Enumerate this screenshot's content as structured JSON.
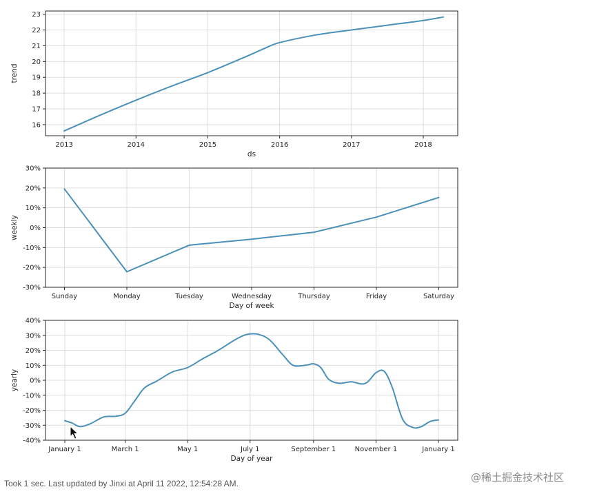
{
  "footer_text": "Took 1 sec. Last updated by Jinxi at April 11 2022, 12:54:28 AM.",
  "watermark_text": "@稀土掘金技术社区",
  "line_color": "#4a90b8",
  "chart_data": [
    {
      "type": "line",
      "xlabel": "ds",
      "ylabel": "trend",
      "x_ticks": [
        "2013",
        "2014",
        "2015",
        "2016",
        "2017",
        "2018"
      ],
      "y_ticks": [
        "16",
        "17",
        "18",
        "19",
        "20",
        "21",
        "22",
        "23"
      ],
      "xlim": [
        2012.74,
        2018.48
      ],
      "ylim": [
        15.3,
        23.2
      ],
      "grid": true,
      "x": [
        2013.0,
        2013.5,
        2014.0,
        2014.5,
        2015.0,
        2015.5,
        2015.8,
        2016.0,
        2016.5,
        2017.0,
        2017.5,
        2018.0,
        2018.28
      ],
      "y": [
        15.6,
        16.6,
        17.55,
        18.45,
        19.3,
        20.25,
        20.85,
        21.2,
        21.68,
        22.0,
        22.3,
        22.6,
        22.82
      ]
    },
    {
      "type": "line",
      "xlabel": "Day of week",
      "ylabel": "weekly",
      "categories": [
        "Sunday",
        "Monday",
        "Tuesday",
        "Wednesday",
        "Thursday",
        "Friday",
        "Saturday"
      ],
      "y_ticks": [
        "-30%",
        "-20%",
        "-10%",
        "0%",
        "10%",
        "20%",
        "30%"
      ],
      "ylim": [
        -30,
        30
      ],
      "grid": true,
      "values": [
        19.5,
        -22.2,
        -8.8,
        -5.8,
        -2.3,
        5.3,
        15.2
      ]
    },
    {
      "type": "line",
      "xlabel": "Day of year",
      "ylabel": "yearly",
      "x_ticks": [
        "January 1",
        "March 1",
        "May 1",
        "July 1",
        "September 1",
        "November 1",
        "January 1"
      ],
      "y_ticks": [
        "-40%",
        "-30%",
        "-20%",
        "-10%",
        "0%",
        "10%",
        "20%",
        "30%",
        "40%"
      ],
      "ylim": [
        -40,
        40
      ],
      "grid": true,
      "x": [
        0,
        7,
        15,
        25,
        38,
        50,
        59,
        68,
        78,
        90,
        105,
        120,
        135,
        150,
        165,
        175,
        182,
        190,
        200,
        213,
        223,
        235,
        243,
        250,
        258,
        268,
        280,
        290,
        296,
        304,
        312,
        320,
        330,
        340,
        348,
        357,
        365
      ],
      "y": [
        -27,
        -28.5,
        -31,
        -29,
        -24.5,
        -24,
        -22,
        -14,
        -5,
        -0.5,
        5.5,
        8.5,
        14.5,
        20,
        26.5,
        30,
        31,
        30.5,
        27,
        17,
        10,
        10,
        11,
        8.5,
        0.5,
        -2,
        -1,
        -2.5,
        -1,
        5,
        6,
        -5,
        -26,
        -31.5,
        -31,
        -27.5,
        -26.5
      ]
    }
  ]
}
